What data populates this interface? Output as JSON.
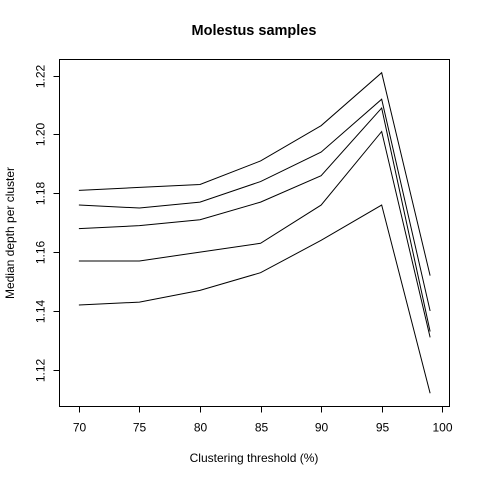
{
  "chart_data": {
    "type": "line",
    "title": "Molestus samples",
    "xlabel": "Clustering threshold (%)",
    "ylabel": "Median depth per cluster",
    "x": [
      70,
      75,
      80,
      85,
      90,
      95,
      99
    ],
    "xlim": [
      68.4,
      100.6
    ],
    "ylim": [
      1.1075,
      1.2255
    ],
    "xticks": [
      70,
      75,
      80,
      85,
      90,
      95,
      100
    ],
    "yticks": [
      1.12,
      1.14,
      1.16,
      1.18,
      1.2,
      1.22
    ],
    "ytick_labels": [
      "1.12",
      "1.14",
      "1.16",
      "1.18",
      "1.20",
      "1.22"
    ],
    "grid": false,
    "series": [
      {
        "values": [
          1.181,
          1.182,
          1.183,
          1.191,
          1.203,
          1.221,
          1.152
        ]
      },
      {
        "values": [
          1.176,
          1.175,
          1.177,
          1.184,
          1.194,
          1.212,
          1.14
        ]
      },
      {
        "values": [
          1.168,
          1.169,
          1.171,
          1.177,
          1.186,
          1.209,
          1.133
        ]
      },
      {
        "values": [
          1.157,
          1.157,
          1.16,
          1.163,
          1.176,
          1.201,
          1.131
        ]
      },
      {
        "values": [
          1.142,
          1.143,
          1.147,
          1.153,
          1.164,
          1.176,
          1.112
        ]
      }
    ]
  }
}
